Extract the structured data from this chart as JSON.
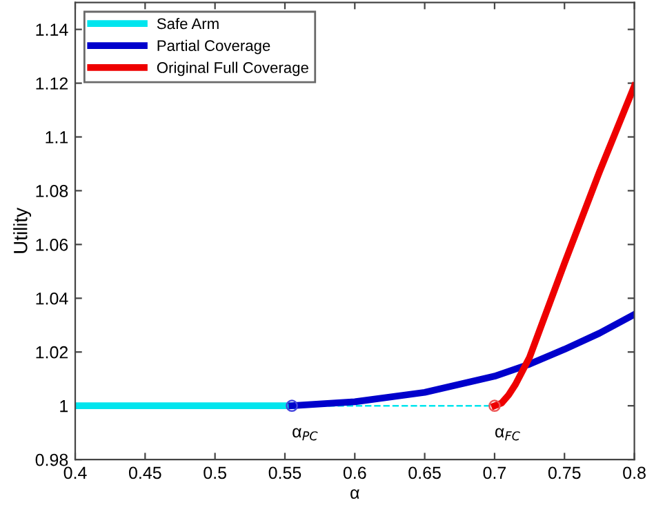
{
  "chart_data": {
    "type": "line",
    "xlabel": "α",
    "ylabel": "Utility",
    "xlim": [
      0.4,
      0.8
    ],
    "ylim": [
      0.98,
      1.15
    ],
    "xticks": [
      0.4,
      0.45,
      0.5,
      0.55,
      0.6,
      0.65,
      0.7,
      0.75,
      0.8
    ],
    "yticks": [
      0.98,
      1,
      1.02,
      1.04,
      1.06,
      1.08,
      1.1,
      1.12,
      1.14
    ],
    "grid": false,
    "legend": "top left",
    "series": [
      {
        "name": "Safe Arm",
        "color": "#00e5ee",
        "x": [
          0.4,
          0.555
        ],
        "values": [
          1.0,
          1.0
        ]
      },
      {
        "name": "Partial Coverage",
        "color": "#0000cc",
        "x": [
          0.555,
          0.6,
          0.65,
          0.7,
          0.725,
          0.75,
          0.775,
          0.8
        ],
        "values": [
          1.0,
          1.0015,
          1.005,
          1.011,
          1.0155,
          1.021,
          1.027,
          1.034
        ]
      },
      {
        "name": "Original Full Coverage",
        "color": "#ee0000",
        "x": [
          0.7,
          0.705,
          0.71,
          0.715,
          0.72,
          0.725,
          0.73,
          0.75,
          0.775,
          0.8
        ],
        "values": [
          1.0,
          1.001,
          1.004,
          1.008,
          1.013,
          1.018,
          1.025,
          1.053,
          1.087,
          1.119
        ]
      },
      {
        "color": "#00e5ee",
        "line_style": "dashed",
        "x": [
          0.555,
          0.7
        ],
        "values": [
          1.0,
          1.0
        ]
      },
      {
        "type": "scatter",
        "marker": "circle",
        "colors": [
          "#4444dd",
          "#ee5555"
        ],
        "x": [
          0.555,
          0.7
        ],
        "values": [
          1.0,
          1.0
        ]
      }
    ],
    "annotations": [
      {
        "text": "α$_{PC}$",
        "x": 0.555,
        "y": 1.0
      },
      {
        "text": "α$_{FC}$",
        "x": 0.7,
        "y": 1.0
      }
    ]
  }
}
